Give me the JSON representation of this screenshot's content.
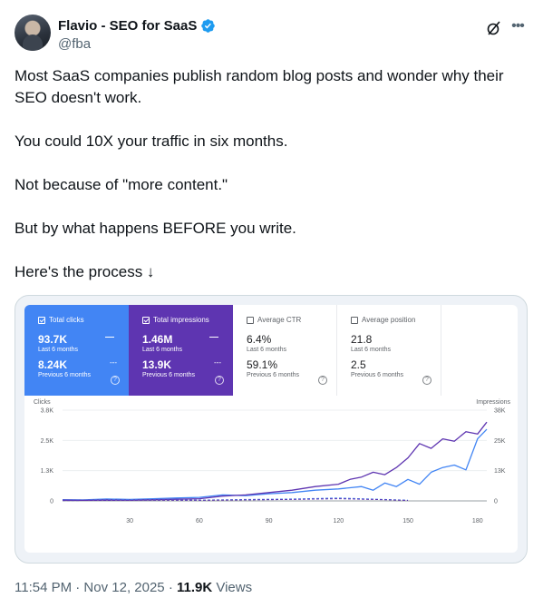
{
  "author": {
    "display_name": "Flavio - SEO for SaaS",
    "handle": "@fba"
  },
  "tweet": {
    "paragraphs": [
      "Most SaaS companies publish random blog posts and wonder why their SEO doesn't work.",
      "You could 10X your traffic in six months.",
      "Not because of \"more content.\"",
      "But by what happens BEFORE you write.",
      "Here's the process ↓"
    ],
    "timestamp": "11:54 PM · Nov 12, 2025 · ",
    "views_count": "11.9K",
    "views_label": " Views"
  },
  "icons": {
    "verified": "verified-badge-icon",
    "grok": "grok-icon",
    "more": "more-icon"
  },
  "colors": {
    "clicks": "#4285f4",
    "impressions": "#5e35b1",
    "verified": "#1d9bf0"
  },
  "metrics": [
    {
      "label": "Total clicks",
      "value": "93.7K",
      "period": "Last 6 months",
      "prev_value": "8.24K",
      "prev_period": "Previous 6 months",
      "checked": true
    },
    {
      "label": "Total impressions",
      "value": "1.46M",
      "period": "Last 6 months",
      "prev_value": "13.9K",
      "prev_period": "Previous 6 months",
      "checked": true
    },
    {
      "label": "Average CTR",
      "value": "6.4%",
      "period": "Last 6 months",
      "prev_value": "59.1%",
      "prev_period": "Previous 6 months",
      "checked": false
    },
    {
      "label": "Average position",
      "value": "21.8",
      "period": "Last 6 months",
      "prev_value": "2.5",
      "prev_period": "Previous 6 months",
      "checked": false
    }
  ],
  "chart_data": {
    "type": "line",
    "left_axis_label": "Clicks",
    "right_axis_label": "Impressions",
    "left_ticks": [
      "3.8K",
      "2.5K",
      "1.3K",
      "0"
    ],
    "right_ticks": [
      "38K",
      "25K",
      "13K",
      "0"
    ],
    "x_ticks": [
      "30",
      "60",
      "90",
      "120",
      "150",
      "180"
    ],
    "x_range": [
      1,
      184
    ],
    "y_left_range": [
      0,
      3800
    ],
    "y_right_range": [
      0,
      38000
    ],
    "series": [
      {
        "name": "Clicks",
        "axis": "left",
        "color": "#4285f4",
        "x": [
          1,
          10,
          20,
          30,
          40,
          50,
          60,
          70,
          80,
          90,
          100,
          110,
          120,
          125,
          130,
          135,
          140,
          145,
          150,
          155,
          160,
          165,
          170,
          175,
          180,
          184
        ],
        "y": [
          50,
          40,
          80,
          60,
          90,
          120,
          150,
          250,
          220,
          300,
          350,
          450,
          500,
          550,
          600,
          450,
          750,
          600,
          900,
          700,
          1200,
          1400,
          1500,
          1300,
          2600,
          3000
        ]
      },
      {
        "name": "Impressions",
        "axis": "right",
        "color": "#5e35b1",
        "x": [
          1,
          10,
          20,
          30,
          40,
          50,
          60,
          70,
          80,
          90,
          100,
          110,
          120,
          125,
          130,
          135,
          140,
          145,
          150,
          155,
          160,
          165,
          170,
          175,
          180,
          184
        ],
        "y": [
          300,
          250,
          400,
          350,
          500,
          700,
          900,
          2000,
          2500,
          3500,
          4500,
          6000,
          7000,
          9000,
          10000,
          12000,
          11000,
          14000,
          18000,
          24000,
          22000,
          26000,
          25000,
          29000,
          28000,
          33000
        ]
      },
      {
        "name": "Clicks (previous)",
        "axis": "left",
        "color": "#4285f4",
        "dashed": true,
        "x": [
          1,
          20,
          40,
          60,
          80,
          100,
          120,
          140,
          150
        ],
        "y": [
          20,
          30,
          40,
          30,
          60,
          80,
          120,
          60,
          30
        ]
      },
      {
        "name": "Impressions (previous)",
        "axis": "right",
        "color": "#5e35b1",
        "dashed": true,
        "x": [
          1,
          20,
          40,
          60,
          80,
          100,
          120,
          140,
          150
        ],
        "y": [
          150,
          200,
          300,
          250,
          400,
          600,
          900,
          500,
          200
        ]
      }
    ]
  }
}
